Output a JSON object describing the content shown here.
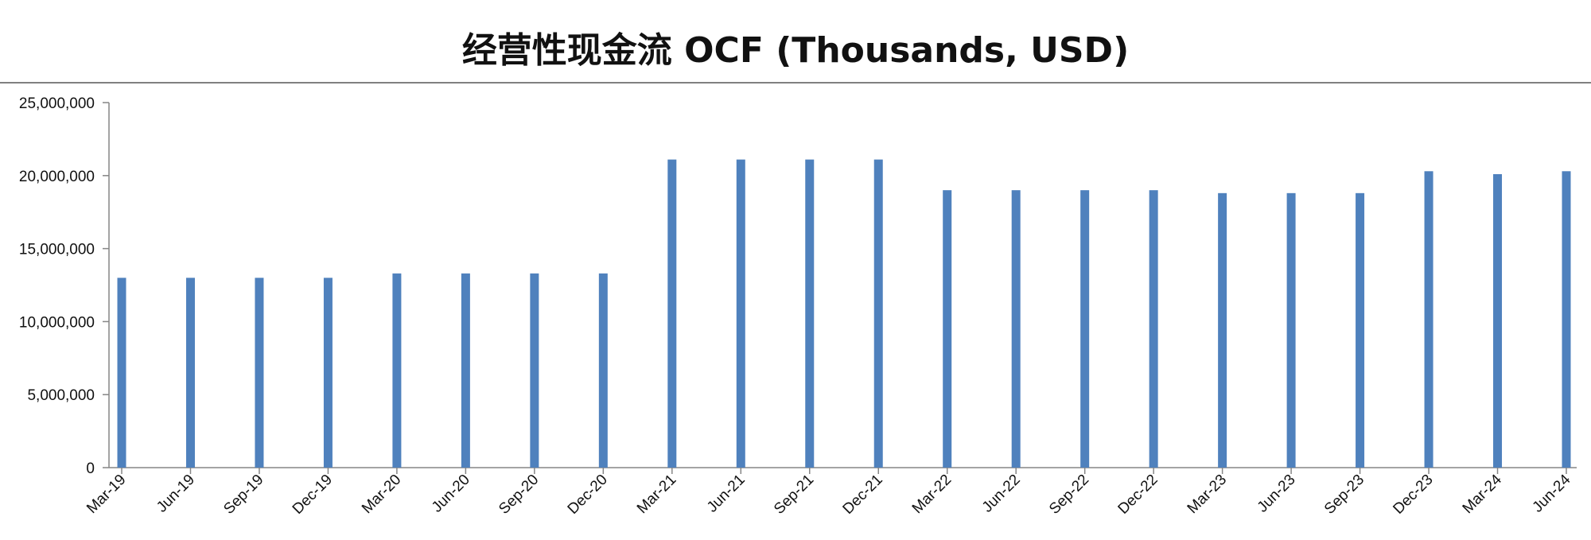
{
  "chart_data": {
    "type": "bar",
    "title": "经营性现金流 OCF (Thousands, USD)",
    "xlabel": "",
    "ylabel": "",
    "categories": [
      "Mar-19",
      "Jun-19",
      "Sep-19",
      "Dec-19",
      "Mar-20",
      "Jun-20",
      "Sep-20",
      "Dec-20",
      "Mar-21",
      "Jun-21",
      "Sep-21",
      "Dec-21",
      "Mar-22",
      "Jun-22",
      "Sep-22",
      "Dec-22",
      "Mar-23",
      "Jun-23",
      "Sep-23",
      "Dec-23",
      "Mar-24",
      "Jun-24"
    ],
    "values": [
      13000000,
      13000000,
      13000000,
      13000000,
      13300000,
      13300000,
      13300000,
      13300000,
      21100000,
      21100000,
      21100000,
      21100000,
      19000000,
      19000000,
      19000000,
      19000000,
      18800000,
      18800000,
      18800000,
      20300000,
      20100000,
      20300000
    ],
    "ylim": [
      0,
      25000000
    ],
    "yticks": [
      0,
      5000000,
      10000000,
      15000000,
      20000000,
      25000000
    ],
    "ytick_labels": [
      "0",
      "5,000,000",
      "10,000,000",
      "15,000,000",
      "20,000,000",
      "25,000,000"
    ],
    "grid": false,
    "bar_color": "#4f81bd"
  }
}
